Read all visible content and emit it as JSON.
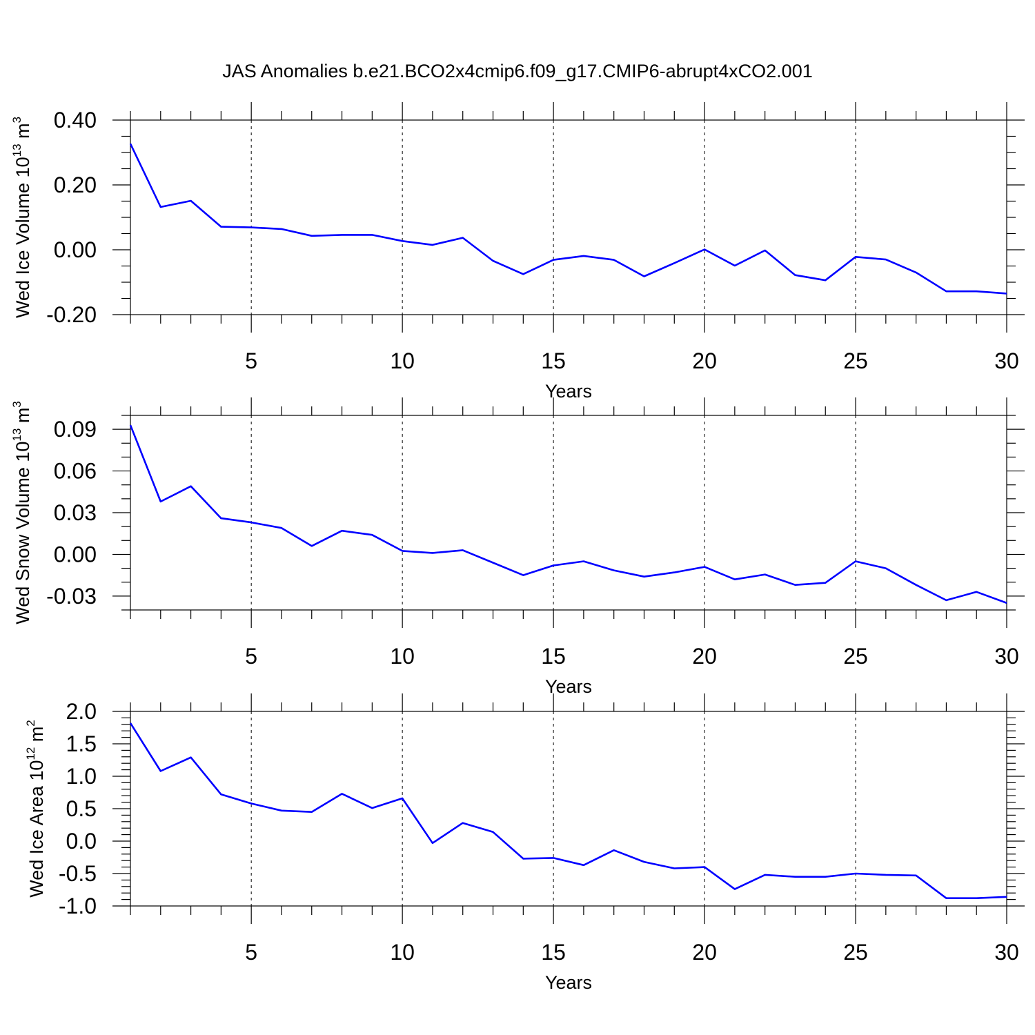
{
  "title": "JAS Anomalies b.e21.BCO2x4cmip6.f09_g17.CMIP6-abrupt4xCO2.001",
  "colors": {
    "line": "#0000ff",
    "axes": "#000000"
  },
  "chart_data": [
    {
      "type": "line",
      "ylabel_main": "Wed Ice Volume 10",
      "ylabel_exp": "13",
      "ylabel_unit": "m",
      "ylabel_unit_exp": "3",
      "xlabel": "Years",
      "xlim": [
        1,
        30
      ],
      "ylim": [
        -0.2,
        0.4
      ],
      "xticks": [
        5,
        10,
        15,
        20,
        25,
        30
      ],
      "xtick_labels": [
        "5",
        "10",
        "15",
        "20",
        "25",
        "30"
      ],
      "yticks": [
        0.4,
        0.2,
        0.0,
        -0.2
      ],
      "ytick_labels": [
        "0.40",
        "0.20",
        "0.00",
        "-0.20"
      ],
      "yminor_step": 0.05,
      "grid_x": true,
      "x": [
        1,
        2,
        3,
        4,
        5,
        6,
        7,
        8,
        9,
        10,
        11,
        12,
        13,
        14,
        15,
        16,
        17,
        18,
        19,
        20,
        21,
        22,
        23,
        24,
        25,
        26,
        27,
        28,
        29,
        30
      ],
      "values": [
        0.327,
        0.132,
        0.151,
        0.071,
        0.069,
        0.064,
        0.043,
        0.046,
        0.046,
        0.027,
        0.015,
        0.037,
        -0.034,
        -0.075,
        -0.031,
        -0.019,
        -0.031,
        -0.082,
        -0.041,
        0.001,
        -0.049,
        -0.002,
        -0.078,
        -0.094,
        -0.022,
        -0.03,
        -0.07,
        -0.128,
        -0.128,
        -0.135
      ]
    },
    {
      "type": "line",
      "ylabel_main": "Wed Snow Volume 10",
      "ylabel_exp": "13",
      "ylabel_unit": "m",
      "ylabel_unit_exp": "3",
      "xlabel": "Years",
      "xlim": [
        1,
        30
      ],
      "ylim": [
        -0.04,
        0.1
      ],
      "xticks": [
        5,
        10,
        15,
        20,
        25,
        30
      ],
      "xtick_labels": [
        "5",
        "10",
        "15",
        "20",
        "25",
        "30"
      ],
      "yticks": [
        0.09,
        0.06,
        0.03,
        0.0,
        -0.03
      ],
      "ytick_labels": [
        "0.09",
        "0.06",
        "0.03",
        "0.00",
        "-0.03"
      ],
      "yminor_step": 0.01,
      "grid_x": true,
      "x": [
        1,
        2,
        3,
        4,
        5,
        6,
        7,
        8,
        9,
        10,
        11,
        12,
        13,
        14,
        15,
        16,
        17,
        18,
        19,
        20,
        21,
        22,
        23,
        24,
        25,
        26,
        27,
        28,
        29,
        30
      ],
      "values": [
        0.093,
        0.038,
        0.049,
        0.026,
        0.023,
        0.019,
        0.006,
        0.017,
        0.014,
        0.0025,
        0.001,
        0.003,
        -0.006,
        -0.015,
        -0.008,
        -0.005,
        -0.0115,
        -0.016,
        -0.013,
        -0.009,
        -0.018,
        -0.0145,
        -0.022,
        -0.0205,
        -0.005,
        -0.01,
        -0.022,
        -0.033,
        -0.027,
        -0.035
      ]
    },
    {
      "type": "line",
      "ylabel_main": "Wed Ice Area 10",
      "ylabel_exp": "12",
      "ylabel_unit": "m",
      "ylabel_unit_exp": "2",
      "xlabel": "Years",
      "xlim": [
        1,
        30
      ],
      "ylim": [
        -1.0,
        2.0
      ],
      "xticks": [
        5,
        10,
        15,
        20,
        25,
        30
      ],
      "xtick_labels": [
        "5",
        "10",
        "15",
        "20",
        "25",
        "30"
      ],
      "yticks": [
        2.0,
        1.5,
        1.0,
        0.5,
        0.0,
        -0.5,
        -1.0
      ],
      "ytick_labels": [
        "2.0",
        "1.5",
        "1.0",
        "0.5",
        "0.0",
        "-0.5",
        "-1.0"
      ],
      "yminor_step": 0.1,
      "grid_x": true,
      "x": [
        1,
        2,
        3,
        4,
        5,
        6,
        7,
        8,
        9,
        10,
        11,
        12,
        13,
        14,
        15,
        16,
        17,
        18,
        19,
        20,
        21,
        22,
        23,
        24,
        25,
        26,
        27,
        28,
        29,
        30
      ],
      "values": [
        1.82,
        1.08,
        1.29,
        0.72,
        0.58,
        0.47,
        0.45,
        0.73,
        0.51,
        0.66,
        -0.03,
        0.28,
        0.14,
        -0.27,
        -0.26,
        -0.37,
        -0.14,
        -0.32,
        -0.42,
        -0.4,
        -0.74,
        -0.52,
        -0.55,
        -0.55,
        -0.5,
        -0.52,
        -0.53,
        -0.88,
        -0.88,
        -0.86
      ]
    }
  ]
}
